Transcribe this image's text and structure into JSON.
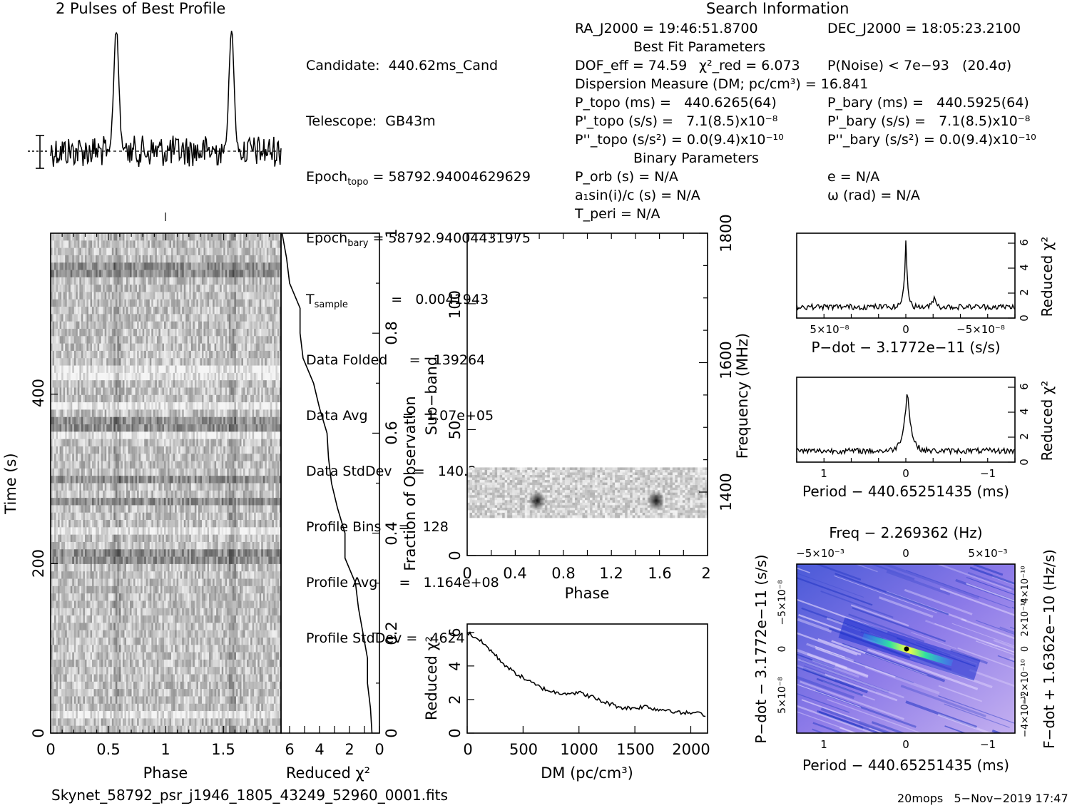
{
  "profile_title": "2 Pulses of Best Profile",
  "search_title": "Search Information",
  "best_fit_title": "Best Fit Parameters",
  "binary_title": "Binary Parameters",
  "info_left": [
    {
      "label": "Candidate:",
      "value": "440.62ms_Cand"
    },
    {
      "label": "Telescope:",
      "value": "GB43m"
    },
    {
      "label": "Epoch",
      "sub": "topo",
      "value": "= 58792.94004629629"
    },
    {
      "label": "Epoch",
      "sub": "bary",
      "value": "= 58792.94004431975"
    },
    {
      "label": "T",
      "sub": "sample",
      "value": "=   0.0041943"
    },
    {
      "label": "Data Folded",
      "value": "=   139264"
    },
    {
      "label": "Data Avg",
      "value": "=   1.07e+05"
    },
    {
      "label": "Data StdDev",
      "value": "=   140.2"
    },
    {
      "label": "Profile Bins",
      "value": "=   128"
    },
    {
      "label": "Profile Avg",
      "value": "=   1.164e+08"
    },
    {
      "label": "Profile StdDev",
      "value": "=   4624"
    }
  ],
  "info_mid": {
    "ra": "RA_J2000 = 19:46:51.8700",
    "dec": "DEC_J2000 = 18:05:23.2100",
    "dof": "DOF_eff = 74.59",
    "chi2": "χ²_red = 6.073",
    "pnoise": "P(Noise) < 7e−93   (20.4σ)",
    "dm": "Dispersion Measure (DM; pc/cm³) = 16.841",
    "p_topo": "P_topo (ms) =   440.6265(64)",
    "pd_topo": "P'_topo (s/s) =   7.1(8.5)x10⁻⁸",
    "pdd_topo": "P''_topo (s/s²) = 0.0(9.4)x10⁻¹⁰",
    "p_bary": "P_bary (ms) =   440.5925(64)",
    "pd_bary": "P'_bary (s/s) =   7.1(8.5)x10⁻⁸",
    "pdd_bary": "P''_bary (s/s²) = 0.0(9.4)x10⁻¹⁰",
    "p_orb": "P_orb (s) = N/A",
    "a1": "a₁sin(i)/c (s) = N/A",
    "t_peri": "T_peri = N/A",
    "e": "e = N/A",
    "omega": "ω (rad) = N/A"
  },
  "footer_file": "Skynet_58792_psr_j1946_1805_43249_52960_0001.fits",
  "footer_date": "20mops   5−Nov−2019 17:47",
  "labels": {
    "phase": "Phase",
    "time": "Time (s)",
    "reduced_chi2": "Reduced χ²",
    "fraction": "Fraction of Observation",
    "subband": "Sub−band",
    "frequency": "Frequency (MHz)",
    "dm_axis": "DM (pc/cm³)",
    "pdot_axis": "P−dot − 3.1772e−11 (s/s)",
    "period_axis": "Period − 440.65251435 (ms)",
    "freq_axis": "Freq − 2.269362 (Hz)",
    "pdot_left": "P−dot − 3.1772e−11 (s/s)",
    "fdot_right": "F−dot + 1.6362e−10 (Hz/s)"
  },
  "chart_data": [
    {
      "id": "profile",
      "type": "line",
      "title": "2 Pulses of Best Profile",
      "x": "phase 0-2",
      "peaks_phase": [
        0.57,
        1.57
      ]
    },
    {
      "id": "time_phase",
      "type": "heatmap",
      "xlabel": "Phase",
      "ylabel": "Time (s)",
      "xlim": [
        0,
        2
      ],
      "ylim": [
        0,
        590
      ],
      "x_ticks": [
        "0",
        "0.5",
        "1",
        "1.5"
      ],
      "y_ticks": [
        "0",
        "200",
        "400"
      ]
    },
    {
      "id": "time_chi2",
      "type": "line",
      "xlabel": "Reduced χ²",
      "ylabel": "Fraction of Observation",
      "x_ticks": [
        "6",
        "4",
        "2",
        "0"
      ],
      "y_ticks": [
        "0",
        "0.2",
        "0.4",
        "0.6",
        "0.8",
        "1"
      ],
      "points": [
        [
          0.5,
          0
        ],
        [
          0.6,
          0.05
        ],
        [
          0.8,
          0.1
        ],
        [
          0.8,
          0.15
        ],
        [
          1.1,
          0.2
        ],
        [
          1.4,
          0.25
        ],
        [
          1.6,
          0.3
        ],
        [
          2.3,
          0.35
        ],
        [
          2.3,
          0.4
        ],
        [
          2.8,
          0.45
        ],
        [
          3.2,
          0.5
        ],
        [
          3.4,
          0.55
        ],
        [
          3.5,
          0.6
        ],
        [
          4.0,
          0.65
        ],
        [
          4.4,
          0.7
        ],
        [
          5.1,
          0.75
        ],
        [
          5.3,
          0.8
        ],
        [
          5.3,
          0.85
        ],
        [
          6.0,
          0.9
        ],
        [
          6.2,
          0.95
        ],
        [
          6.5,
          1.0
        ]
      ]
    },
    {
      "id": "subband_phase",
      "type": "heatmap",
      "xlabel": "Phase",
      "ylabel": "Sub−band",
      "y2label": "Frequency (MHz)",
      "x_ticks": [
        "0",
        "0.4",
        "0.8",
        "1.2",
        "1.6",
        "2"
      ],
      "y_ticks": [
        "0",
        "50",
        "100"
      ],
      "y2_ticks": [
        "1400",
        "1600",
        "1800"
      ],
      "active_subbands": [
        15,
        35
      ],
      "pulse_phase": [
        0.57,
        1.57
      ],
      "pulse_subband": 22
    },
    {
      "id": "dm_chi2",
      "type": "line",
      "xlabel": "DM (pc/cm³)",
      "ylabel": "Reduced χ²",
      "xlim": [
        0,
        2150
      ],
      "ylim": [
        0,
        6.5
      ],
      "x_ticks": [
        "0",
        "500",
        "1000",
        "1500",
        "2000"
      ],
      "y_ticks": [
        "0",
        "2",
        "4",
        "6"
      ],
      "points": [
        [
          0,
          6.0
        ],
        [
          100,
          5.6
        ],
        [
          200,
          5.0
        ],
        [
          300,
          4.3
        ],
        [
          400,
          3.7
        ],
        [
          500,
          3.3
        ],
        [
          600,
          2.9
        ],
        [
          700,
          2.6
        ],
        [
          800,
          2.4
        ],
        [
          900,
          2.4
        ],
        [
          1000,
          2.4
        ],
        [
          1100,
          2.2
        ],
        [
          1200,
          1.9
        ],
        [
          1300,
          1.7
        ],
        [
          1400,
          1.5
        ],
        [
          1500,
          1.5
        ],
        [
          1600,
          1.6
        ],
        [
          1700,
          1.4
        ],
        [
          1800,
          1.4
        ],
        [
          1900,
          1.2
        ],
        [
          2000,
          1.2
        ],
        [
          2150,
          1.1
        ]
      ]
    },
    {
      "id": "pdot_chi2",
      "type": "line",
      "xlabel": "P−dot − 3.1772e−11 (s/s)",
      "ylabel": "Reduced χ²",
      "x_ticks": [
        "5×10⁻⁸",
        "0",
        "−5×10⁻⁸"
      ],
      "y_ticks": [
        "0",
        "2",
        "4",
        "6"
      ],
      "peak": 6.0
    },
    {
      "id": "period_chi2",
      "type": "line",
      "xlabel": "Period − 440.65251435 (ms)",
      "ylabel": "Reduced χ²",
      "x_ticks": [
        "1",
        "0",
        "−1"
      ],
      "y_ticks": [
        "0",
        "2",
        "4",
        "6"
      ],
      "peak": 6.0
    },
    {
      "id": "p_pdot_plane",
      "type": "heatmap",
      "xlabel": "Period − 440.65251435 (ms)",
      "ylabel": "P−dot − 3.1772e−11 (s/s)",
      "x2label": "Freq − 2.269362 (Hz)",
      "y2label": "F−dot + 1.6362e−10 (Hz/s)",
      "x_ticks": [
        "1",
        "0",
        "−1"
      ],
      "x2_ticks": [
        "−5×10⁻³",
        "0",
        "5×10⁻³"
      ],
      "y_ticks": [
        "−5×10⁻⁸",
        "0",
        "5×10⁻⁸"
      ],
      "y2_ticks": [
        "4×10⁻¹⁰",
        "2×10⁻¹⁰",
        "0",
        "−2×10⁻¹⁰",
        "−4×10⁻¹⁰"
      ]
    }
  ]
}
